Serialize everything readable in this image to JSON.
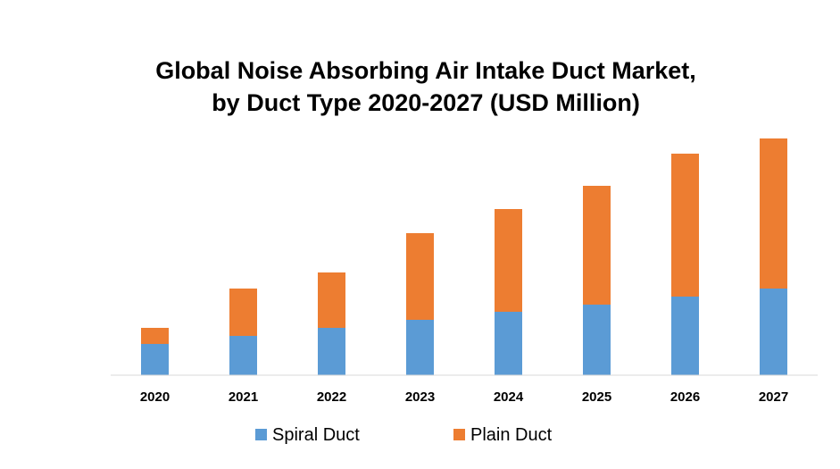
{
  "chart_data": {
    "type": "bar",
    "stacked": true,
    "title": [
      "Global Noise Absorbing Air Intake Duct Market,",
      "by Duct Type  2020-2027 (USD Million)"
    ],
    "categories": [
      "2020",
      "2021",
      "2022",
      "2023",
      "2024",
      "2025",
      "2026",
      "2027"
    ],
    "series": [
      {
        "name": "Spiral Duct",
        "color": "#5b9bd5",
        "values": [
          35,
          44,
          53,
          62,
          71,
          79,
          88,
          97
        ]
      },
      {
        "name": "Plain Duct",
        "color": "#ed7d31",
        "values": [
          18,
          53,
          62,
          97,
          115,
          133,
          160,
          168
        ]
      }
    ],
    "ylim": [
      0,
      270
    ],
    "grid": false,
    "legend": "bottom"
  }
}
